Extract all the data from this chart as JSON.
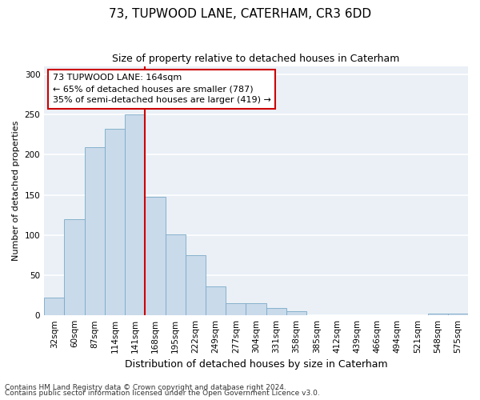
{
  "title1": "73, TUPWOOD LANE, CATERHAM, CR3 6DD",
  "title2": "Size of property relative to detached houses in Caterham",
  "xlabel": "Distribution of detached houses by size in Caterham",
  "ylabel": "Number of detached properties",
  "bins": [
    "32sqm",
    "60sqm",
    "87sqm",
    "114sqm",
    "141sqm",
    "168sqm",
    "195sqm",
    "222sqm",
    "249sqm",
    "277sqm",
    "304sqm",
    "331sqm",
    "358sqm",
    "385sqm",
    "412sqm",
    "439sqm",
    "466sqm",
    "494sqm",
    "521sqm",
    "548sqm",
    "575sqm"
  ],
  "values": [
    22,
    120,
    209,
    232,
    250,
    148,
    101,
    75,
    36,
    15,
    15,
    9,
    5,
    0,
    0,
    0,
    0,
    0,
    0,
    2,
    2
  ],
  "bar_color": "#c9daea",
  "bar_edge_color": "#7aaac8",
  "vline_index": 5,
  "vline_color": "#cc0000",
  "annotation_text": "73 TUPWOOD LANE: 164sqm\n← 65% of detached houses are smaller (787)\n35% of semi-detached houses are larger (419) →",
  "annotation_box_color": "#ffffff",
  "annotation_box_edge": "#cc0000",
  "ylim": [
    0,
    310
  ],
  "yticks": [
    0,
    50,
    100,
    150,
    200,
    250,
    300
  ],
  "plot_bg_color": "#eaf0f6",
  "fig_bg_color": "#ffffff",
  "footer1": "Contains HM Land Registry data © Crown copyright and database right 2024.",
  "footer2": "Contains public sector information licensed under the Open Government Licence v3.0.",
  "title1_fontsize": 11,
  "title2_fontsize": 9,
  "xlabel_fontsize": 9,
  "ylabel_fontsize": 8,
  "tick_fontsize": 7.5,
  "footer_fontsize": 6.5,
  "annot_fontsize": 8
}
